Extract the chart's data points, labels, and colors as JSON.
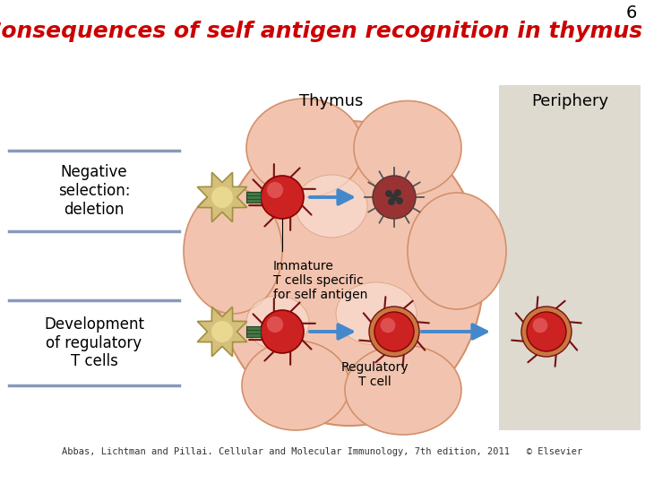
{
  "title": "Consequences of self antigen recognition in thymus",
  "title_color": "#CC0000",
  "title_fontsize": 18,
  "page_number": "6",
  "page_number_color": "#000000",
  "page_number_fontsize": 14,
  "caption": "Abbas, Lichtman and Pillai. Cellular and Molecular Immunology, 7th edition, 2011   © Elsevier",
  "caption_fontsize": 7.5,
  "caption_color": "#333333",
  "bg_color": "#ffffff",
  "label_neg": "Negative\nselection:\ndeletion",
  "label_dev": "Development\nof regulatory\nT cells",
  "label_thymus": "Thymus",
  "label_periphery": "Periphery",
  "label_immature": "Immature\nT cells specific\nfor self antigen",
  "label_regulatory": "Regulatory\nT cell",
  "thymus_color": "#f2c4b0",
  "thymus_edge": "#d4906a",
  "periphery_bg": "#dedad0",
  "dendritic_color": "#d4c07a",
  "dendritic_edge": "#a09040",
  "tcell_color": "#cc2222",
  "tcell_edge": "#880000",
  "tcell_spike_color": "#771111",
  "reg_outer_color": "#c87840",
  "dead_cell_color": "#993333",
  "dead_spot_color": "#333333",
  "connector_color": "#447744",
  "connector_edge": "#224422",
  "arrow_color": "#4488cc",
  "box_edge_color": "#8899bb",
  "label_fontsize": 12
}
